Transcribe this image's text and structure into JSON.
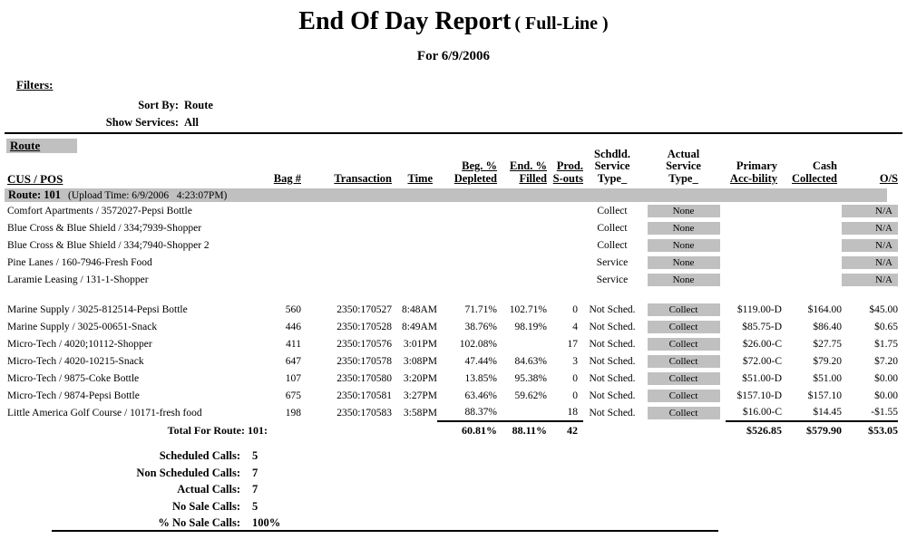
{
  "report": {
    "title": "End Of Day Report",
    "title_suffix": "( Full-Line )",
    "subtitle": "For 6/9/2006",
    "filters_label": "Filters:",
    "filters": [
      {
        "label": "Sort By:",
        "value": "Route"
      },
      {
        "label": "Show Services:",
        "value": "All"
      }
    ]
  },
  "table": {
    "route_header": "Route",
    "cus_header": "CUS / POS",
    "columns": [
      {
        "id": "bag",
        "align": "right",
        "lines": [
          {
            "t": "Bag #",
            "u": true
          }
        ]
      },
      {
        "id": "trans",
        "align": "right",
        "lines": [
          {
            "t": "Transaction",
            "u": true
          }
        ]
      },
      {
        "id": "time",
        "align": "right",
        "lines": [
          {
            "t": "Time",
            "u": true
          }
        ]
      },
      {
        "id": "beg",
        "align": "right",
        "lines": [
          {
            "t": "Beg. %",
            "u": true
          },
          {
            "t": "Depleted",
            "u": true
          }
        ]
      },
      {
        "id": "end",
        "align": "right",
        "lines": [
          {
            "t": "End. %",
            "u": true
          },
          {
            "t": "Filled",
            "u": true
          }
        ]
      },
      {
        "id": "prod",
        "align": "right",
        "lines": [
          {
            "t": "Prod.",
            "u": true
          },
          {
            "t": "S-outs",
            "u": true
          }
        ]
      },
      {
        "id": "schdld",
        "align": "center",
        "lines": [
          {
            "t": "Schdld.",
            "u": false
          },
          {
            "t": "Service",
            "u": false
          },
          {
            "t": "Type_",
            "u": false
          }
        ]
      },
      {
        "id": "actual",
        "align": "center",
        "lines": [
          {
            "t": "Actual",
            "u": false
          },
          {
            "t": "Service",
            "u": false
          },
          {
            "t": "Type_",
            "u": false
          }
        ]
      },
      {
        "id": "primary",
        "align": "right",
        "lines": [
          {
            "t": "Primary",
            "u": false
          },
          {
            "t": "Acc-bility",
            "u": true
          }
        ]
      },
      {
        "id": "cash",
        "align": "right",
        "lines": [
          {
            "t": "Cash",
            "u": false
          },
          {
            "t": "Collected",
            "u": true
          }
        ]
      },
      {
        "id": "os",
        "align": "right",
        "lines": [
          {
            "t": "O/S",
            "u": true
          }
        ]
      }
    ],
    "route_bar": {
      "title": "Route: 101",
      "upload": "(Upload Time: 6/9/2006   4:23:07PM)"
    },
    "no_sale_rows": [
      {
        "cus": "Comfort Apartments / 3572027-Pepsi Bottle",
        "schdld": "Collect",
        "actual": "None",
        "os": "N/A"
      },
      {
        "cus": "Blue Cross & Blue Shield / 334;7939-Shopper",
        "schdld": "Collect",
        "actual": "None",
        "os": "N/A"
      },
      {
        "cus": "Blue Cross & Blue Shield / 334;7940-Shopper 2",
        "schdld": "Collect",
        "actual": "None",
        "os": "N/A"
      },
      {
        "cus": "Pine Lanes / 160-7946-Fresh Food",
        "schdld": "Service",
        "actual": "None",
        "os": "N/A"
      },
      {
        "cus": "Laramie Leasing / 131-1-Shopper",
        "schdld": "Service",
        "actual": "None",
        "os": "N/A"
      }
    ],
    "serviced_rows": [
      {
        "cus": "Marine Supply / 3025-812514-Pepsi Bottle",
        "bag": "560",
        "trans": "2350:170527",
        "time": "8:48AM",
        "beg": "71.71%",
        "end": "102.71%",
        "prod": "0",
        "schdld": "Not Sched.",
        "actual": "Collect",
        "primary": "$119.00-D",
        "cash": "$164.00",
        "os": "$45.00"
      },
      {
        "cus": "Marine Supply / 3025-00651-Snack",
        "bag": "446",
        "trans": "2350:170528",
        "time": "8:49AM",
        "beg": "38.76%",
        "end": "98.19%",
        "prod": "4",
        "schdld": "Not Sched.",
        "actual": "Collect",
        "primary": "$85.75-D",
        "cash": "$86.40",
        "os": "$0.65"
      },
      {
        "cus": "Micro-Tech / 4020;10112-Shopper",
        "bag": "411",
        "trans": "2350:170576",
        "time": "3:01PM",
        "beg": "102.08%",
        "end": "",
        "prod": "17",
        "schdld": "Not Sched.",
        "actual": "Collect",
        "primary": "$26.00-C",
        "cash": "$27.75",
        "os": "$1.75"
      },
      {
        "cus": "Micro-Tech / 4020-10215-Snack",
        "bag": "647",
        "trans": "2350:170578",
        "time": "3:08PM",
        "beg": "47.44%",
        "end": "84.63%",
        "prod": "3",
        "schdld": "Not Sched.",
        "actual": "Collect",
        "primary": "$72.00-C",
        "cash": "$79.20",
        "os": "$7.20"
      },
      {
        "cus": "Micro-Tech / 9875-Coke Bottle",
        "bag": "107",
        "trans": "2350:170580",
        "time": "3:20PM",
        "beg": "13.85%",
        "end": "95.38%",
        "prod": "0",
        "schdld": "Not Sched.",
        "actual": "Collect",
        "primary": "$51.00-D",
        "cash": "$51.00",
        "os": "$0.00"
      },
      {
        "cus": "Micro-Tech / 9874-Pepsi Bottle",
        "bag": "675",
        "trans": "2350:170581",
        "time": "3:27PM",
        "beg": "63.46%",
        "end": "59.62%",
        "prod": "0",
        "schdld": "Not Sched.",
        "actual": "Collect",
        "primary": "$157.10-D",
        "cash": "$157.10",
        "os": "$0.00"
      },
      {
        "cus": "Little America Golf Course / 10171-fresh food",
        "bag": "198",
        "trans": "2350:170583",
        "time": "3:58PM",
        "beg": "88.37%",
        "end": "",
        "prod": "18",
        "schdld": "Not Sched.",
        "actual": "Collect",
        "primary": "$16.00-C",
        "cash": "$14.45",
        "os": "-$1.55"
      }
    ],
    "total": {
      "label": "Total For Route: 101:",
      "beg": "60.81%",
      "end": "88.11%",
      "prod": "42",
      "primary": "$526.85",
      "cash": "$579.90",
      "os": "$53.05"
    }
  },
  "summary": [
    {
      "label": "Scheduled Calls:",
      "value": "5"
    },
    {
      "label": "Non Scheduled Calls:",
      "value": "7"
    },
    {
      "label": "Actual Calls:",
      "value": "7"
    },
    {
      "label": "No Sale Calls:",
      "value": "5"
    },
    {
      "label": "% No Sale Calls:",
      "value": "100%"
    }
  ],
  "colors": {
    "highlight": "#c0c0c0",
    "text": "#000000",
    "background": "#ffffff"
  }
}
